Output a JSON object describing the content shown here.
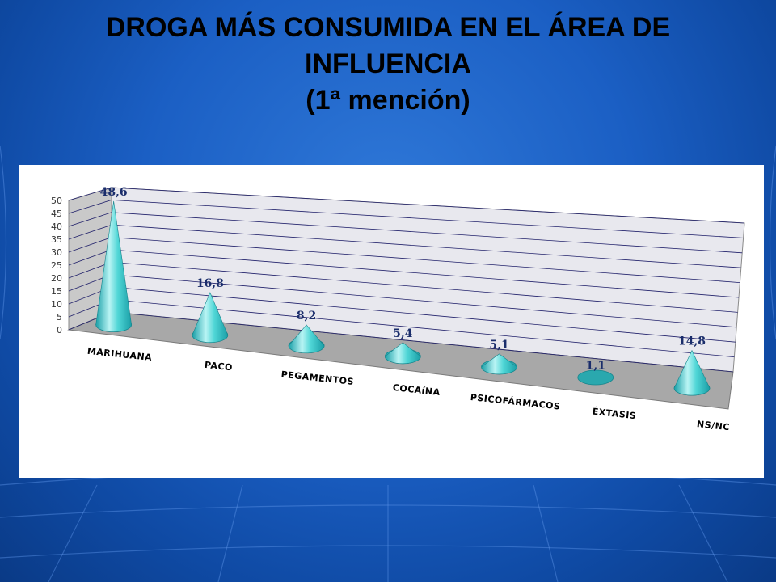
{
  "slide": {
    "title_lines": [
      "DROGA MÁS CONSUMIDA EN EL ÁREA DE",
      "INFLUENCIA",
      "(1ª mención)"
    ]
  },
  "chart_data": {
    "type": "bar",
    "shape": "cone-3d",
    "title": "DROGA MÁS CONSUMIDA EN EL ÁREA DE INFLUENCIA (1ª mención)",
    "categories": [
      "MARIHUANA",
      "PACO",
      "PEGAMENTOS",
      "COCAíNA",
      "PSICOFÁRMACOS",
      "ÉXTASIS",
      "NS/NC"
    ],
    "values": [
      48.6,
      16.8,
      8.2,
      5.4,
      5.1,
      1.1,
      14.8
    ],
    "value_labels": [
      "48,6",
      "16,8",
      "8,2",
      "5,4",
      "5,1",
      "1,1",
      "14,8"
    ],
    "y_ticks": [
      "0",
      "5",
      "10",
      "15",
      "20",
      "25",
      "30",
      "35",
      "40",
      "45",
      "50"
    ],
    "ylim": [
      0,
      50
    ],
    "grid": true,
    "legend": "none",
    "colors": {
      "cone": "#3cc8c8",
      "wall": "#e8e8ee",
      "floor": "#a8a8a8",
      "grid": "#20206a"
    }
  }
}
